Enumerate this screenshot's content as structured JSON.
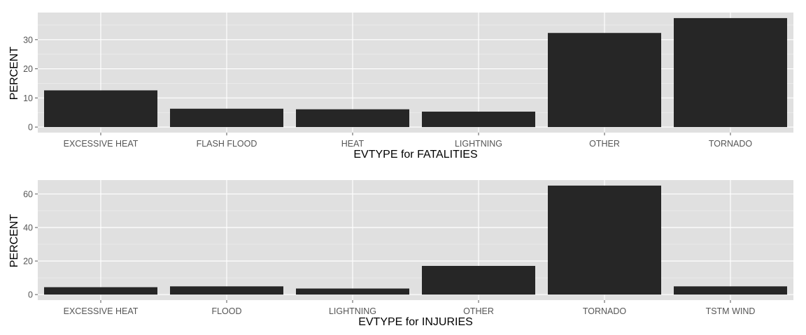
{
  "chart_data": [
    {
      "type": "bar",
      "categories": [
        "EXCESSIVE HEAT",
        "FLASH FLOOD",
        "HEAT",
        "LIGHTNING",
        "OTHER",
        "TORNADO"
      ],
      "values": [
        12.6,
        6.3,
        6.1,
        5.3,
        32.3,
        37.4
      ],
      "xlabel": "EVTYPE for FATALITIES",
      "ylabel": "PERCENT",
      "ylim": [
        -1.9,
        39.3
      ],
      "yticks": [
        0,
        10,
        20,
        30
      ],
      "grid": true,
      "bar_color": "#262626",
      "panel_color": "#e0e0e0"
    },
    {
      "type": "bar",
      "categories": [
        "EXCESSIVE HEAT",
        "FLOOD",
        "LIGHTNING",
        "OTHER",
        "TORNADO",
        "TSTM WIND"
      ],
      "values": [
        4.4,
        4.9,
        3.6,
        17.1,
        65.0,
        4.9
      ],
      "xlabel": "EVTYPE for INJURIES",
      "ylabel": "PERCENT",
      "ylim": [
        -3.3,
        68.3
      ],
      "yticks": [
        0,
        20,
        40,
        60
      ],
      "grid": true,
      "bar_color": "#262626",
      "panel_color": "#e0e0e0"
    }
  ]
}
